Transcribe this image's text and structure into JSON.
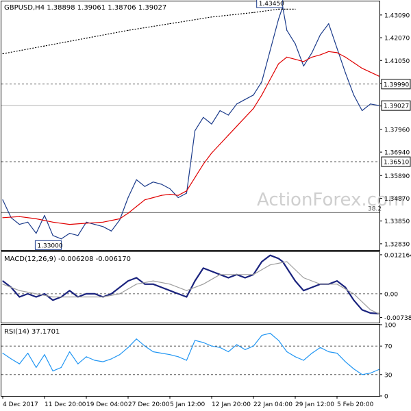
{
  "chart_data": [
    {
      "type": "line",
      "title": "GBPUSD,H4  1.38898 1.39061 1.38706 1.39027",
      "ylim": [
        1.3255,
        1.437
      ],
      "yticks": [
        "1.43090",
        "1.42070",
        "1.41050",
        "1.40030",
        "1.39010",
        "1.37960",
        "1.36940",
        "1.35890",
        "1.34870",
        "1.33850",
        "1.32830"
      ],
      "hlines": [
        {
          "value": 1.3999,
          "label": "1.39990",
          "style": "dashed"
        },
        {
          "value": 1.3651,
          "label": "1.36510",
          "style": "dashed"
        },
        {
          "value": 1.3423,
          "label": "38.2",
          "style": "solid"
        }
      ],
      "current_price": {
        "value": 1.39027,
        "label": "1.39027"
      },
      "annotations": [
        {
          "label": "1.43450",
          "value": 1.4345,
          "x": 67
        },
        {
          "label": "1.33000",
          "value": 1.33,
          "x": 14
        }
      ],
      "watermark": "ActionForex.com",
      "series": [
        {
          "name": "",
          "color": "#1a3a8a",
          "x": [
            0,
            2,
            4,
            6,
            8,
            10,
            12,
            14,
            16,
            18,
            20,
            22,
            24,
            26,
            28,
            30,
            32,
            34,
            36,
            38,
            40,
            42,
            44,
            46,
            48,
            50,
            52,
            54,
            56,
            58,
            60,
            62,
            64,
            66,
            67,
            68,
            70,
            72,
            74,
            76,
            78,
            80,
            82,
            84,
            86,
            88,
            90
          ],
          "values": [
            1.348,
            1.34,
            1.337,
            1.338,
            1.333,
            1.341,
            1.332,
            1.3305,
            1.333,
            1.332,
            1.338,
            1.337,
            1.336,
            1.334,
            1.339,
            1.349,
            1.357,
            1.354,
            1.356,
            1.355,
            1.353,
            1.349,
            1.351,
            1.379,
            1.385,
            1.382,
            1.388,
            1.386,
            1.391,
            1.393,
            1.395,
            1.401,
            1.415,
            1.429,
            1.4345,
            1.424,
            1.418,
            1.408,
            1.414,
            1.422,
            1.427,
            1.416,
            1.405,
            1.395,
            1.388,
            1.391,
            1.3903
          ]
        },
        {
          "name": "",
          "color": "#e00000",
          "x": [
            0,
            4,
            8,
            12,
            16,
            20,
            24,
            28,
            30,
            32,
            34,
            36,
            38,
            40,
            42,
            44,
            46,
            48,
            50,
            52,
            54,
            56,
            58,
            60,
            62,
            64,
            66,
            68,
            70,
            72,
            74,
            76,
            78,
            80,
            82,
            84,
            86,
            90
          ],
          "values": [
            1.34,
            1.3405,
            1.3395,
            1.338,
            1.337,
            1.3375,
            1.338,
            1.3395,
            1.342,
            1.345,
            1.348,
            1.349,
            1.35,
            1.3505,
            1.35,
            1.352,
            1.358,
            1.364,
            1.369,
            1.373,
            1.377,
            1.381,
            1.385,
            1.389,
            1.395,
            1.402,
            1.409,
            1.412,
            1.411,
            1.41,
            1.412,
            1.413,
            1.4145,
            1.414,
            1.412,
            1.4095,
            1.407,
            1.4035
          ]
        },
        {
          "name": "",
          "color": "#000000",
          "style": "dotted",
          "x": [
            0,
            10,
            20,
            30,
            40,
            50,
            60,
            66,
            67,
            68,
            70
          ],
          "values": [
            1.4135,
            1.417,
            1.4205,
            1.424,
            1.427,
            1.43,
            1.432,
            1.4335,
            1.4335,
            1.4335,
            1.4335
          ]
        }
      ],
      "xlabels": [
        "4 Dec 2017",
        "11 Dec 20:00",
        "19 Dec 04:00",
        "27 Dec 20:00",
        "5 Jan 12:00",
        "12 Jan 20:00",
        "22 Jan 04:00",
        "29 Jan 12:00",
        "5 Feb 20:00"
      ],
      "xlabel_pos": [
        0,
        10,
        20,
        30,
        40,
        50,
        60,
        70,
        80
      ]
    },
    {
      "type": "line",
      "title": "MACD(12,26,9) -0.006208 -0.006170",
      "ylim": [
        -0.009,
        0.013
      ],
      "yticks": [
        "0.012164",
        "0.00",
        "-0.007384"
      ],
      "hlines": [
        {
          "value": 0,
          "style": "dashed"
        }
      ],
      "series": [
        {
          "name": "",
          "color": "#1a237e",
          "x": [
            0,
            2,
            4,
            6,
            8,
            10,
            12,
            14,
            16,
            18,
            20,
            22,
            24,
            26,
            28,
            30,
            32,
            34,
            36,
            38,
            40,
            42,
            44,
            46,
            48,
            50,
            52,
            54,
            56,
            58,
            60,
            62,
            64,
            66,
            67,
            68,
            70,
            72,
            74,
            76,
            78,
            80,
            82,
            84,
            86,
            88,
            90
          ],
          "values": [
            0.004,
            0.002,
            -0.001,
            0.0,
            -0.001,
            0.0,
            -0.002,
            -0.001,
            0.001,
            -0.001,
            0.0,
            0.0,
            -0.001,
            0.0,
            0.002,
            0.004,
            0.005,
            0.003,
            0.003,
            0.002,
            0.001,
            0.0,
            -0.001,
            0.004,
            0.008,
            0.007,
            0.006,
            0.005,
            0.006,
            0.005,
            0.006,
            0.01,
            0.012,
            0.011,
            0.01,
            0.008,
            0.004,
            0.001,
            0.002,
            0.003,
            0.003,
            0.004,
            0.002,
            -0.002,
            -0.005,
            -0.006,
            -0.0062
          ]
        },
        {
          "name": "",
          "color": "#9e9e9e",
          "x": [
            0,
            4,
            8,
            12,
            16,
            20,
            24,
            28,
            32,
            36,
            40,
            44,
            48,
            52,
            56,
            60,
            64,
            68,
            72,
            76,
            80,
            84,
            88,
            90
          ],
          "values": [
            0.003,
            0.001,
            0.0,
            -0.001,
            -0.001,
            -0.001,
            -0.001,
            0.0,
            0.003,
            0.004,
            0.003,
            0.001,
            0.003,
            0.006,
            0.006,
            0.006,
            0.009,
            0.01,
            0.005,
            0.003,
            0.003,
            0.0,
            -0.005,
            -0.0062
          ]
        }
      ]
    },
    {
      "type": "line",
      "title": "RSI(14) 37.1701",
      "ylim": [
        0,
        100
      ],
      "yticks": [
        "100",
        "70",
        "30",
        "0"
      ],
      "hlines": [
        {
          "value": 70,
          "style": "dashed"
        },
        {
          "value": 30,
          "style": "dashed"
        }
      ],
      "series": [
        {
          "name": "",
          "color": "#2196f3",
          "x": [
            0,
            2,
            4,
            6,
            8,
            10,
            12,
            14,
            16,
            18,
            20,
            22,
            24,
            26,
            28,
            30,
            32,
            34,
            36,
            38,
            40,
            42,
            44,
            46,
            48,
            50,
            52,
            54,
            56,
            58,
            60,
            62,
            64,
            66,
            67,
            68,
            70,
            72,
            74,
            76,
            78,
            80,
            82,
            84,
            86,
            88,
            90
          ],
          "values": [
            60,
            52,
            45,
            60,
            40,
            58,
            35,
            40,
            62,
            45,
            55,
            50,
            48,
            52,
            58,
            68,
            80,
            70,
            62,
            60,
            58,
            55,
            50,
            78,
            75,
            70,
            68,
            62,
            72,
            65,
            70,
            85,
            88,
            78,
            70,
            62,
            55,
            50,
            60,
            68,
            62,
            60,
            48,
            38,
            30,
            32,
            37
          ]
        }
      ]
    }
  ]
}
